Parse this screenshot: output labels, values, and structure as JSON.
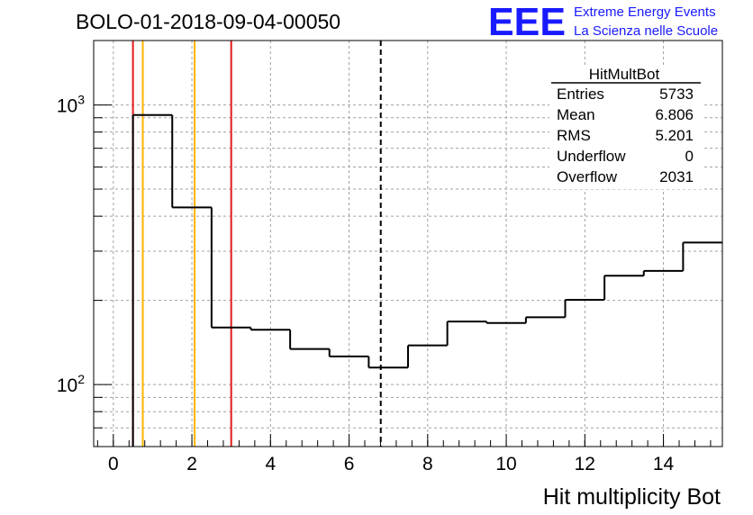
{
  "header": {
    "run_title": "BOLO-01-2018-09-04-00050",
    "logo_text": "EEE",
    "logo_line1": "Extreme Energy Events",
    "logo_line2": "La Scienza nelle Scuole"
  },
  "stats_box": {
    "title": "HitMultBot",
    "rows": [
      {
        "label": "Entries",
        "value": "5733"
      },
      {
        "label": "Mean",
        "value": "6.806"
      },
      {
        "label": "RMS",
        "value": "5.201"
      },
      {
        "label": "Underflow",
        "value": "0"
      },
      {
        "label": "Overflow",
        "value": "2031"
      }
    ]
  },
  "chart_data": {
    "type": "histogram",
    "title": "BOLO-01-2018-09-04-00050",
    "xlabel": "Hit multiplicity Bot",
    "ylabel": "",
    "xlim": [
      -0.5,
      15.5
    ],
    "ylim": [
      60,
      1700
    ],
    "y_scale": "log",
    "grid": true,
    "x_ticks": [
      0,
      2,
      4,
      6,
      8,
      10,
      12,
      14
    ],
    "y_ticks": [
      {
        "value": 100,
        "base": "10",
        "exp": "2"
      },
      {
        "value": 1000,
        "base": "10",
        "exp": "3"
      }
    ],
    "bins": [
      {
        "low": 0.5,
        "high": 1.5,
        "count": 920
      },
      {
        "low": 1.5,
        "high": 2.5,
        "count": 430
      },
      {
        "low": 2.5,
        "high": 3.5,
        "count": 160
      },
      {
        "low": 3.5,
        "high": 4.5,
        "count": 157
      },
      {
        "low": 4.5,
        "high": 5.5,
        "count": 134
      },
      {
        "low": 5.5,
        "high": 6.5,
        "count": 126
      },
      {
        "low": 6.5,
        "high": 7.5,
        "count": 115
      },
      {
        "low": 7.5,
        "high": 8.5,
        "count": 138
      },
      {
        "low": 8.5,
        "high": 9.5,
        "count": 168
      },
      {
        "low": 9.5,
        "high": 10.5,
        "count": 166
      },
      {
        "low": 10.5,
        "high": 11.5,
        "count": 174
      },
      {
        "low": 11.5,
        "high": 12.5,
        "count": 201
      },
      {
        "low": 12.5,
        "high": 13.5,
        "count": 245
      },
      {
        "low": 13.5,
        "high": 14.5,
        "count": 255
      },
      {
        "low": 14.5,
        "high": 15.5,
        "count": 322
      }
    ],
    "markers": [
      {
        "name": "red-line-1",
        "x": 0.5,
        "color": "#e41a1c",
        "style": "solid"
      },
      {
        "name": "orange-line-1",
        "x": 0.75,
        "color": "#ffb300",
        "style": "solid"
      },
      {
        "name": "orange-line-2",
        "x": 2.07,
        "color": "#ffb300",
        "style": "solid"
      },
      {
        "name": "red-line-2",
        "x": 3.0,
        "color": "#e41a1c",
        "style": "solid"
      },
      {
        "name": "mean-line",
        "x": 6.806,
        "color": "#000000",
        "style": "dashed"
      }
    ],
    "colors": {
      "histogram": "#000000",
      "grid": "#999999",
      "logo": "#1a1aff"
    }
  }
}
